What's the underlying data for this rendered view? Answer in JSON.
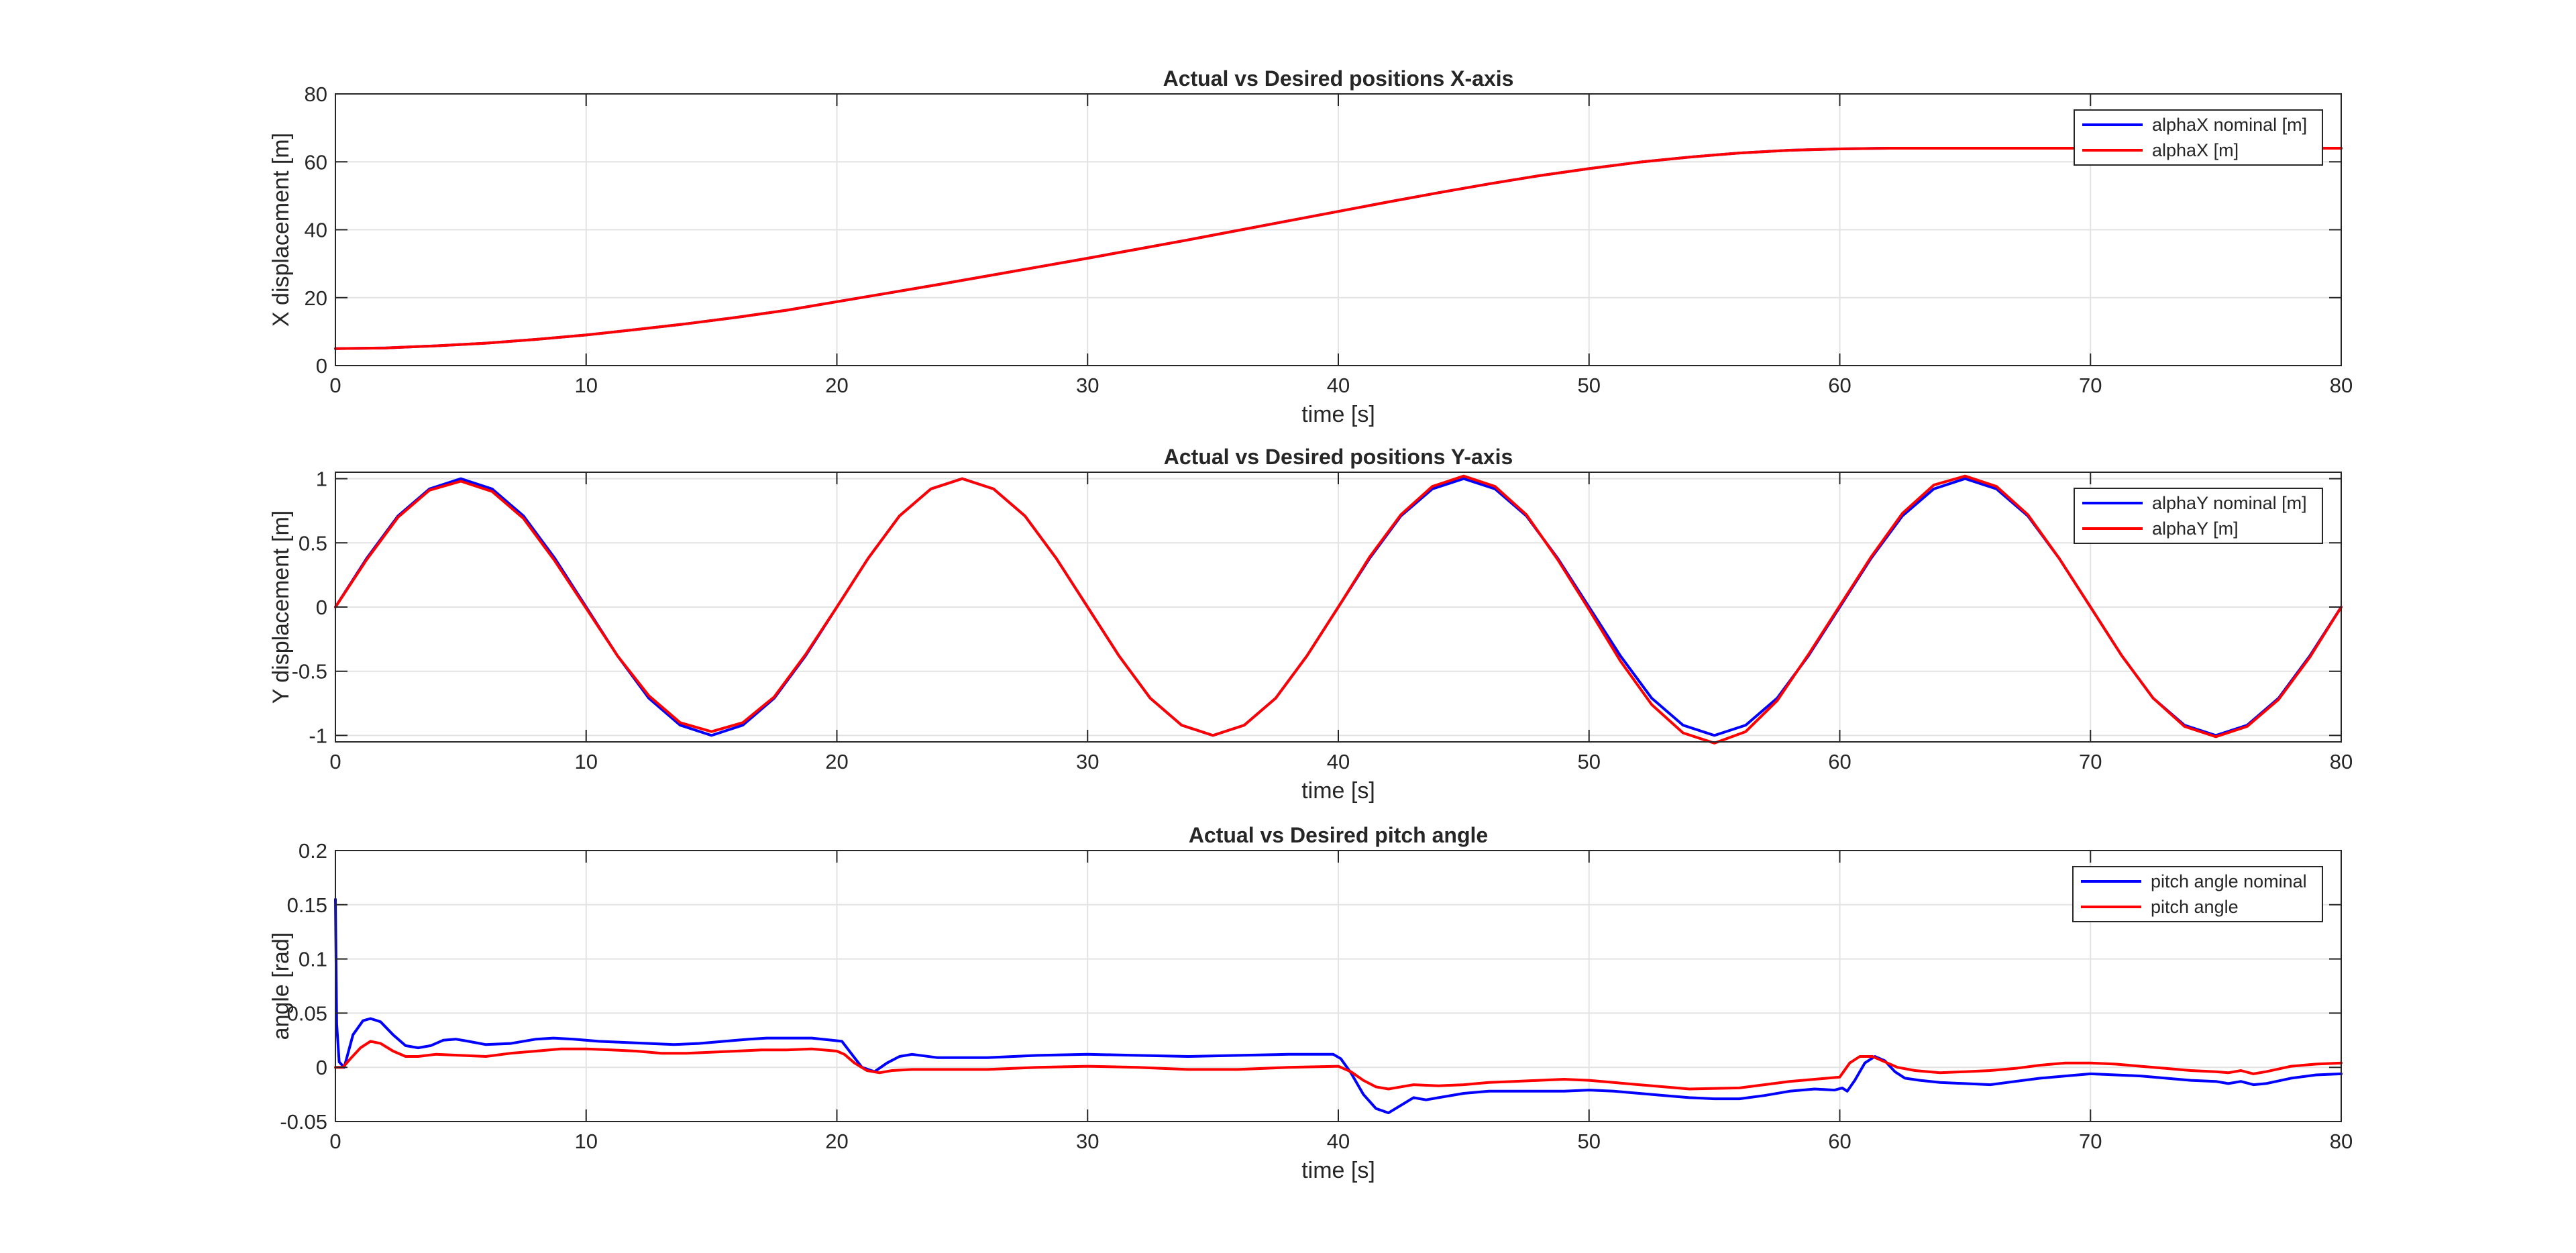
{
  "chart_data": [
    {
      "type": "line",
      "title": "Actual vs Desired positions X-axis",
      "xlabel": "time [s]",
      "ylabel": "X displacement [m]",
      "xlim": [
        0,
        80
      ],
      "ylim": [
        0,
        80
      ],
      "xticks": [
        0,
        10,
        20,
        30,
        40,
        50,
        60,
        70,
        80
      ],
      "yticks": [
        0,
        20,
        40,
        60,
        80
      ],
      "xtick_labels": [
        "0",
        "10",
        "20",
        "30",
        "40",
        "50",
        "60",
        "70",
        "80"
      ],
      "ytick_labels": [
        "0",
        "20",
        "40",
        "60",
        "80"
      ],
      "grid": true,
      "legend_position": "top-right",
      "series": [
        {
          "name": "alphaX nominal [m]",
          "color": "#0000ff",
          "x": [
            0,
            2,
            4,
            6,
            8,
            10,
            12,
            14,
            16,
            18,
            20,
            22,
            24,
            26,
            28,
            30,
            32,
            34,
            36,
            38,
            40,
            42,
            44,
            46,
            48,
            50,
            52,
            54,
            56,
            58,
            60,
            62,
            64,
            66,
            68,
            70,
            72,
            74,
            76,
            78,
            80
          ],
          "y": [
            5,
            5.2,
            5.8,
            6.6,
            7.7,
            9,
            10.6,
            12.3,
            14.2,
            16.3,
            18.8,
            21.3,
            23.8,
            26.4,
            29,
            31.6,
            34.3,
            37,
            39.8,
            42.6,
            45.4,
            48.2,
            50.9,
            53.5,
            55.9,
            58,
            59.9,
            61.4,
            62.6,
            63.4,
            63.8,
            64,
            64,
            64,
            64,
            64,
            64,
            64,
            64,
            64,
            64
          ]
        },
        {
          "name": "alphaX [m]",
          "color": "#ff0000",
          "x": [
            0,
            2,
            4,
            6,
            8,
            10,
            12,
            14,
            16,
            18,
            20,
            22,
            24,
            26,
            28,
            30,
            32,
            34,
            36,
            38,
            40,
            42,
            44,
            46,
            48,
            50,
            52,
            54,
            56,
            58,
            60,
            62,
            64,
            66,
            68,
            70,
            72,
            74,
            76,
            78,
            80
          ],
          "y": [
            5,
            5.2,
            5.8,
            6.6,
            7.7,
            9,
            10.6,
            12.3,
            14.2,
            16.3,
            18.8,
            21.3,
            23.8,
            26.4,
            29,
            31.6,
            34.3,
            37,
            39.8,
            42.6,
            45.4,
            48.2,
            50.9,
            53.5,
            55.9,
            58,
            59.9,
            61.4,
            62.6,
            63.4,
            63.8,
            64,
            64,
            64,
            64,
            64,
            64,
            64,
            64,
            64,
            64
          ]
        }
      ]
    },
    {
      "type": "line",
      "title": "Actual vs Desired positions Y-axis",
      "xlabel": "time [s]",
      "ylabel": "Y displacement [m]",
      "xlim": [
        0,
        80
      ],
      "ylim": [
        -1.05,
        1.05
      ],
      "xticks": [
        0,
        10,
        20,
        30,
        40,
        50,
        60,
        70,
        80
      ],
      "yticks": [
        -1,
        -0.5,
        0,
        0.5,
        1
      ],
      "xtick_labels": [
        "0",
        "10",
        "20",
        "30",
        "40",
        "50",
        "60",
        "70",
        "80"
      ],
      "ytick_labels": [
        "-1",
        "-0.5",
        "0",
        "0.5",
        "1"
      ],
      "grid": true,
      "legend_position": "top-right",
      "series": [
        {
          "name": "alphaY nominal [m]",
          "color": "#0000ff",
          "x": [
            0,
            1.25,
            2.5,
            3.75,
            5,
            6.25,
            7.5,
            8.75,
            10,
            11.25,
            12.5,
            13.75,
            15,
            16.25,
            17.5,
            18.75,
            20,
            21.25,
            22.5,
            23.75,
            25,
            26.25,
            27.5,
            28.75,
            30,
            31.25,
            32.5,
            33.75,
            35,
            36.25,
            37.5,
            38.75,
            40,
            41.25,
            42.5,
            43.75,
            45,
            46.25,
            47.5,
            48.75,
            50,
            51.25,
            52.5,
            53.75,
            55,
            56.25,
            57.5,
            58.75,
            60,
            61.25,
            62.5,
            63.75,
            65,
            66.25,
            67.5,
            68.75,
            70,
            71.25,
            72.5,
            73.75,
            75,
            76.25,
            77.5,
            78.75,
            80
          ],
          "y": [
            0,
            0.38,
            0.71,
            0.92,
            1,
            0.92,
            0.71,
            0.38,
            0,
            -0.38,
            -0.71,
            -0.92,
            -1,
            -0.92,
            -0.71,
            -0.38,
            0,
            0.38,
            0.71,
            0.92,
            1,
            0.92,
            0.71,
            0.38,
            0,
            -0.38,
            -0.71,
            -0.92,
            -1,
            -0.92,
            -0.71,
            -0.38,
            0,
            0.38,
            0.71,
            0.92,
            1,
            0.92,
            0.71,
            0.38,
            0,
            -0.38,
            -0.71,
            -0.92,
            -1,
            -0.92,
            -0.71,
            -0.38,
            0,
            0.38,
            0.71,
            0.92,
            1,
            0.92,
            0.71,
            0.38,
            0,
            -0.38,
            -0.71,
            -0.92,
            -1,
            -0.92,
            -0.71,
            -0.38,
            0
          ]
        },
        {
          "name": "alphaY [m]",
          "color": "#ff0000",
          "x": [
            0,
            1.25,
            2.5,
            3.75,
            5,
            6.25,
            7.5,
            8.75,
            10,
            11.25,
            12.5,
            13.75,
            15,
            16.25,
            17.5,
            18.75,
            20,
            21.25,
            22.5,
            23.75,
            25,
            26.25,
            27.5,
            28.75,
            30,
            31.25,
            32.5,
            33.75,
            35,
            36.25,
            37.5,
            38.75,
            40,
            41.25,
            42.5,
            43.75,
            45,
            46.25,
            47.5,
            48.75,
            50,
            51.25,
            52.5,
            53.75,
            55,
            56.25,
            57.5,
            58.75,
            60,
            61.25,
            62.5,
            63.75,
            65,
            66.25,
            67.5,
            68.75,
            70,
            71.25,
            72.5,
            73.75,
            75,
            76.25,
            77.5,
            78.75,
            80
          ],
          "y": [
            0,
            0.37,
            0.7,
            0.91,
            0.98,
            0.9,
            0.69,
            0.36,
            -0.01,
            -0.38,
            -0.69,
            -0.9,
            -0.97,
            -0.9,
            -0.7,
            -0.37,
            0,
            0.38,
            0.71,
            0.92,
            1,
            0.92,
            0.71,
            0.38,
            0,
            -0.38,
            -0.71,
            -0.92,
            -1,
            -0.92,
            -0.71,
            -0.38,
            0,
            0.39,
            0.72,
            0.94,
            1.02,
            0.94,
            0.72,
            0.37,
            -0.02,
            -0.42,
            -0.76,
            -0.98,
            -1.06,
            -0.97,
            -0.73,
            -0.37,
            0.01,
            0.39,
            0.73,
            0.95,
            1.02,
            0.94,
            0.72,
            0.38,
            0,
            -0.38,
            -0.71,
            -0.93,
            -1.01,
            -0.93,
            -0.72,
            -0.39,
            0
          ]
        }
      ]
    },
    {
      "type": "line",
      "title": "Actual vs Desired pitch angle",
      "xlabel": "time [s]",
      "ylabel": "angle [rad]",
      "xlim": [
        0,
        80
      ],
      "ylim": [
        -0.05,
        0.2
      ],
      "xticks": [
        0,
        10,
        20,
        30,
        40,
        50,
        60,
        70,
        80
      ],
      "yticks": [
        -0.05,
        0,
        0.05,
        0.1,
        0.15,
        0.2
      ],
      "xtick_labels": [
        "0",
        "10",
        "20",
        "30",
        "40",
        "50",
        "60",
        "70",
        "80"
      ],
      "ytick_labels": [
        "-0.05",
        "0",
        "0.05",
        "0.1",
        "0.15",
        "0.2"
      ],
      "grid": true,
      "legend_position": "top-right",
      "series": [
        {
          "name": "pitch angle nominal",
          "color": "#0000ff",
          "x": [
            0,
            0.05,
            0.15,
            0.35,
            0.7,
            1.1,
            1.4,
            1.8,
            2.3,
            2.8,
            3.3,
            3.8,
            4.3,
            4.8,
            5.3,
            6,
            7,
            8,
            8.7,
            9.5,
            10.5,
            11.5,
            12.5,
            13.5,
            14.5,
            15.5,
            16.5,
            17.2,
            18,
            19,
            19.8,
            20.2,
            20.6,
            21,
            21.5,
            22,
            22.5,
            23,
            24,
            26,
            28,
            30,
            32,
            34,
            36,
            38,
            39.8,
            40.1,
            40.5,
            41,
            41.5,
            42,
            42.5,
            43,
            43.5,
            44,
            45,
            46,
            47,
            48,
            49,
            50,
            51,
            52,
            53,
            54,
            55,
            56,
            57,
            58,
            59,
            59.8,
            60.1,
            60.3,
            60.6,
            61,
            61.4,
            61.8,
            62.2,
            62.6,
            63.2,
            64,
            65,
            66,
            67,
            68,
            69,
            70,
            71,
            72,
            73,
            74,
            75,
            75.5,
            76,
            76.5,
            77,
            78,
            79,
            80
          ],
          "y": [
            0.155,
            0.04,
            0.005,
            0.0,
            0.03,
            0.043,
            0.045,
            0.042,
            0.03,
            0.02,
            0.018,
            0.02,
            0.025,
            0.026,
            0.024,
            0.021,
            0.022,
            0.026,
            0.027,
            0.026,
            0.024,
            0.023,
            0.022,
            0.021,
            0.022,
            0.024,
            0.026,
            0.027,
            0.027,
            0.027,
            0.025,
            0.024,
            0.012,
            0.0,
            -0.004,
            0.004,
            0.01,
            0.012,
            0.009,
            0.009,
            0.011,
            0.012,
            0.011,
            0.01,
            0.011,
            0.012,
            0.012,
            0.008,
            -0.005,
            -0.025,
            -0.038,
            -0.042,
            -0.035,
            -0.028,
            -0.03,
            -0.028,
            -0.024,
            -0.022,
            -0.022,
            -0.022,
            -0.022,
            -0.021,
            -0.022,
            -0.024,
            -0.026,
            -0.028,
            -0.029,
            -0.029,
            -0.026,
            -0.022,
            -0.02,
            -0.021,
            -0.019,
            -0.022,
            -0.012,
            0.004,
            0.01,
            0.006,
            -0.004,
            -0.01,
            -0.012,
            -0.014,
            -0.015,
            -0.016,
            -0.013,
            -0.01,
            -0.008,
            -0.006,
            -0.007,
            -0.008,
            -0.01,
            -0.012,
            -0.013,
            -0.015,
            -0.013,
            -0.016,
            -0.015,
            -0.01,
            -0.007,
            -0.006
          ]
        },
        {
          "name": "pitch angle",
          "color": "#ff0000",
          "x": [
            0,
            0.3,
            0.6,
            1,
            1.4,
            1.8,
            2.3,
            2.8,
            3.3,
            4,
            5,
            6,
            7,
            8,
            9,
            10,
            11,
            12,
            13,
            14,
            15,
            16,
            17,
            18,
            19,
            20,
            20.3,
            20.7,
            21.2,
            21.7,
            22.2,
            23,
            24,
            26,
            28,
            30,
            32,
            34,
            36,
            38,
            40,
            40.5,
            41,
            41.5,
            42,
            42.5,
            43,
            44,
            45,
            46,
            47,
            48,
            49,
            50,
            52,
            54,
            56,
            58,
            59,
            60,
            60.4,
            60.8,
            61.3,
            61.8,
            62.3,
            63,
            64,
            65,
            66,
            67,
            68,
            69,
            70,
            71,
            72,
            73,
            74,
            75,
            75.5,
            76,
            76.5,
            77,
            78,
            79,
            80
          ],
          "y": [
            0.0,
            0.0,
            0.008,
            0.018,
            0.024,
            0.022,
            0.015,
            0.01,
            0.01,
            0.012,
            0.011,
            0.01,
            0.013,
            0.015,
            0.017,
            0.017,
            0.016,
            0.015,
            0.013,
            0.013,
            0.014,
            0.015,
            0.016,
            0.016,
            0.017,
            0.015,
            0.012,
            0.004,
            -0.003,
            -0.005,
            -0.003,
            -0.002,
            -0.002,
            -0.002,
            0.0,
            0.001,
            0.0,
            -0.002,
            -0.002,
            0.0,
            0.001,
            -0.004,
            -0.012,
            -0.018,
            -0.02,
            -0.018,
            -0.016,
            -0.017,
            -0.016,
            -0.014,
            -0.013,
            -0.012,
            -0.011,
            -0.012,
            -0.016,
            -0.02,
            -0.019,
            -0.013,
            -0.011,
            -0.009,
            0.004,
            0.01,
            0.01,
            0.005,
            0.0,
            -0.003,
            -0.005,
            -0.004,
            -0.003,
            -0.001,
            0.002,
            0.004,
            0.004,
            0.003,
            0.001,
            -0.001,
            -0.003,
            -0.004,
            -0.005,
            -0.003,
            -0.006,
            -0.004,
            0.001,
            0.003,
            0.004
          ]
        }
      ]
    }
  ]
}
